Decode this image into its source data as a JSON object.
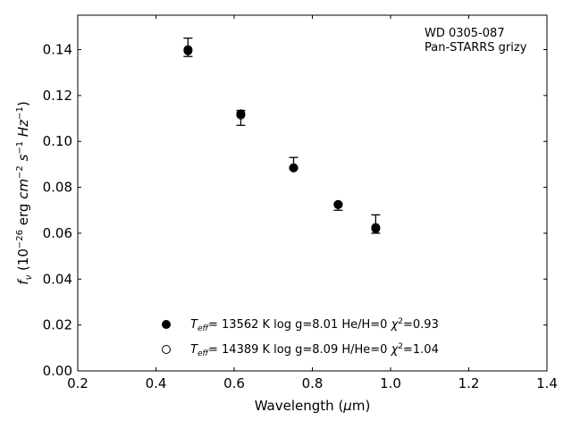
{
  "chart_data": {
    "type": "scatter",
    "annotation": [
      "WD 0305-087",
      "Pan-STARRS grizy"
    ],
    "xlabel": "Wavelength (μm)",
    "ylabel": "f_ν (10^-26 erg cm^-2 s^-1 Hz^-1)",
    "xlim": [
      0.2,
      1.4
    ],
    "ylim": [
      0.0,
      0.155
    ],
    "xticks": [
      0.2,
      0.4,
      0.6,
      0.8,
      1.0,
      1.2,
      1.4
    ],
    "xtick_labels": [
      "0.2",
      "0.4",
      "0.6",
      "0.8",
      "1.0",
      "1.2",
      "1.4"
    ],
    "yticks": [
      0.0,
      0.02,
      0.04,
      0.06,
      0.08,
      0.1,
      0.12,
      0.14
    ],
    "ytick_labels": [
      "0.00",
      "0.02",
      "0.04",
      "0.06",
      "0.08",
      "0.10",
      "0.12",
      "0.14"
    ],
    "grid": false,
    "legend_position": "bottom-center",
    "observed": {
      "x": [
        0.482,
        0.617,
        0.752,
        0.866,
        0.962
      ],
      "y": [
        0.1405,
        0.1105,
        0.089,
        0.0715,
        0.0635
      ],
      "err_low": [
        0.0035,
        0.0035,
        0.001,
        0.0015,
        0.0035
      ],
      "err_high": [
        0.0045,
        0.003,
        0.004,
        0.0015,
        0.0045
      ]
    },
    "series": [
      {
        "name": "T_eff= 13562 K  log g=8.01  He/H=0  χ²=0.93",
        "marker": "filled-circle",
        "x": [
          0.482,
          0.617,
          0.752,
          0.866,
          0.962
        ],
        "y": [
          0.1395,
          0.112,
          0.0885,
          0.0725,
          0.062
        ]
      },
      {
        "name": "T_eff= 14389 K  log g=8.09  H/He=0  χ²=1.04",
        "marker": "open-circle",
        "x": [
          0.482,
          0.617,
          0.752,
          0.866,
          0.962
        ],
        "y": [
          0.14,
          0.1115,
          0.0885,
          0.0725,
          0.0625
        ]
      }
    ]
  }
}
